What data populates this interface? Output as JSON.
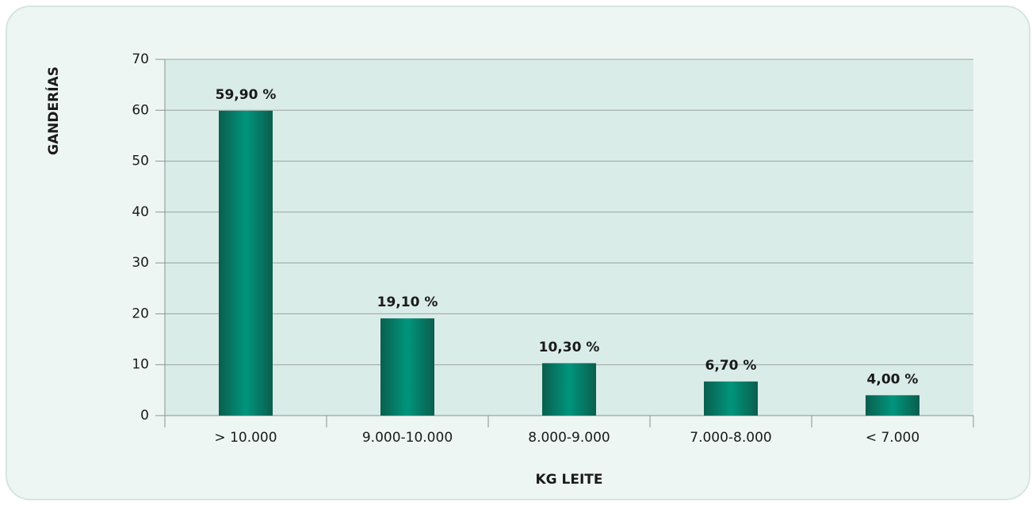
{
  "chart_data": {
    "type": "bar",
    "xlabel": "KG LEITE",
    "ylabel": "GANDERÍAS",
    "categories": [
      "> 10.000",
      "9.000-10.000",
      "8.000-9.000",
      "7.000-8.000",
      "< 7.000"
    ],
    "values": [
      59.9,
      19.1,
      10.3,
      6.7,
      4.0
    ],
    "value_labels": [
      "59,90 %",
      "19,10 %",
      "10,30 %",
      "6,70 %",
      "4,00 %"
    ],
    "color": "#00957d",
    "ylim": [
      0,
      70
    ],
    "yticks": [
      0,
      10,
      20,
      30,
      40,
      50,
      60,
      70
    ],
    "grid": true
  }
}
